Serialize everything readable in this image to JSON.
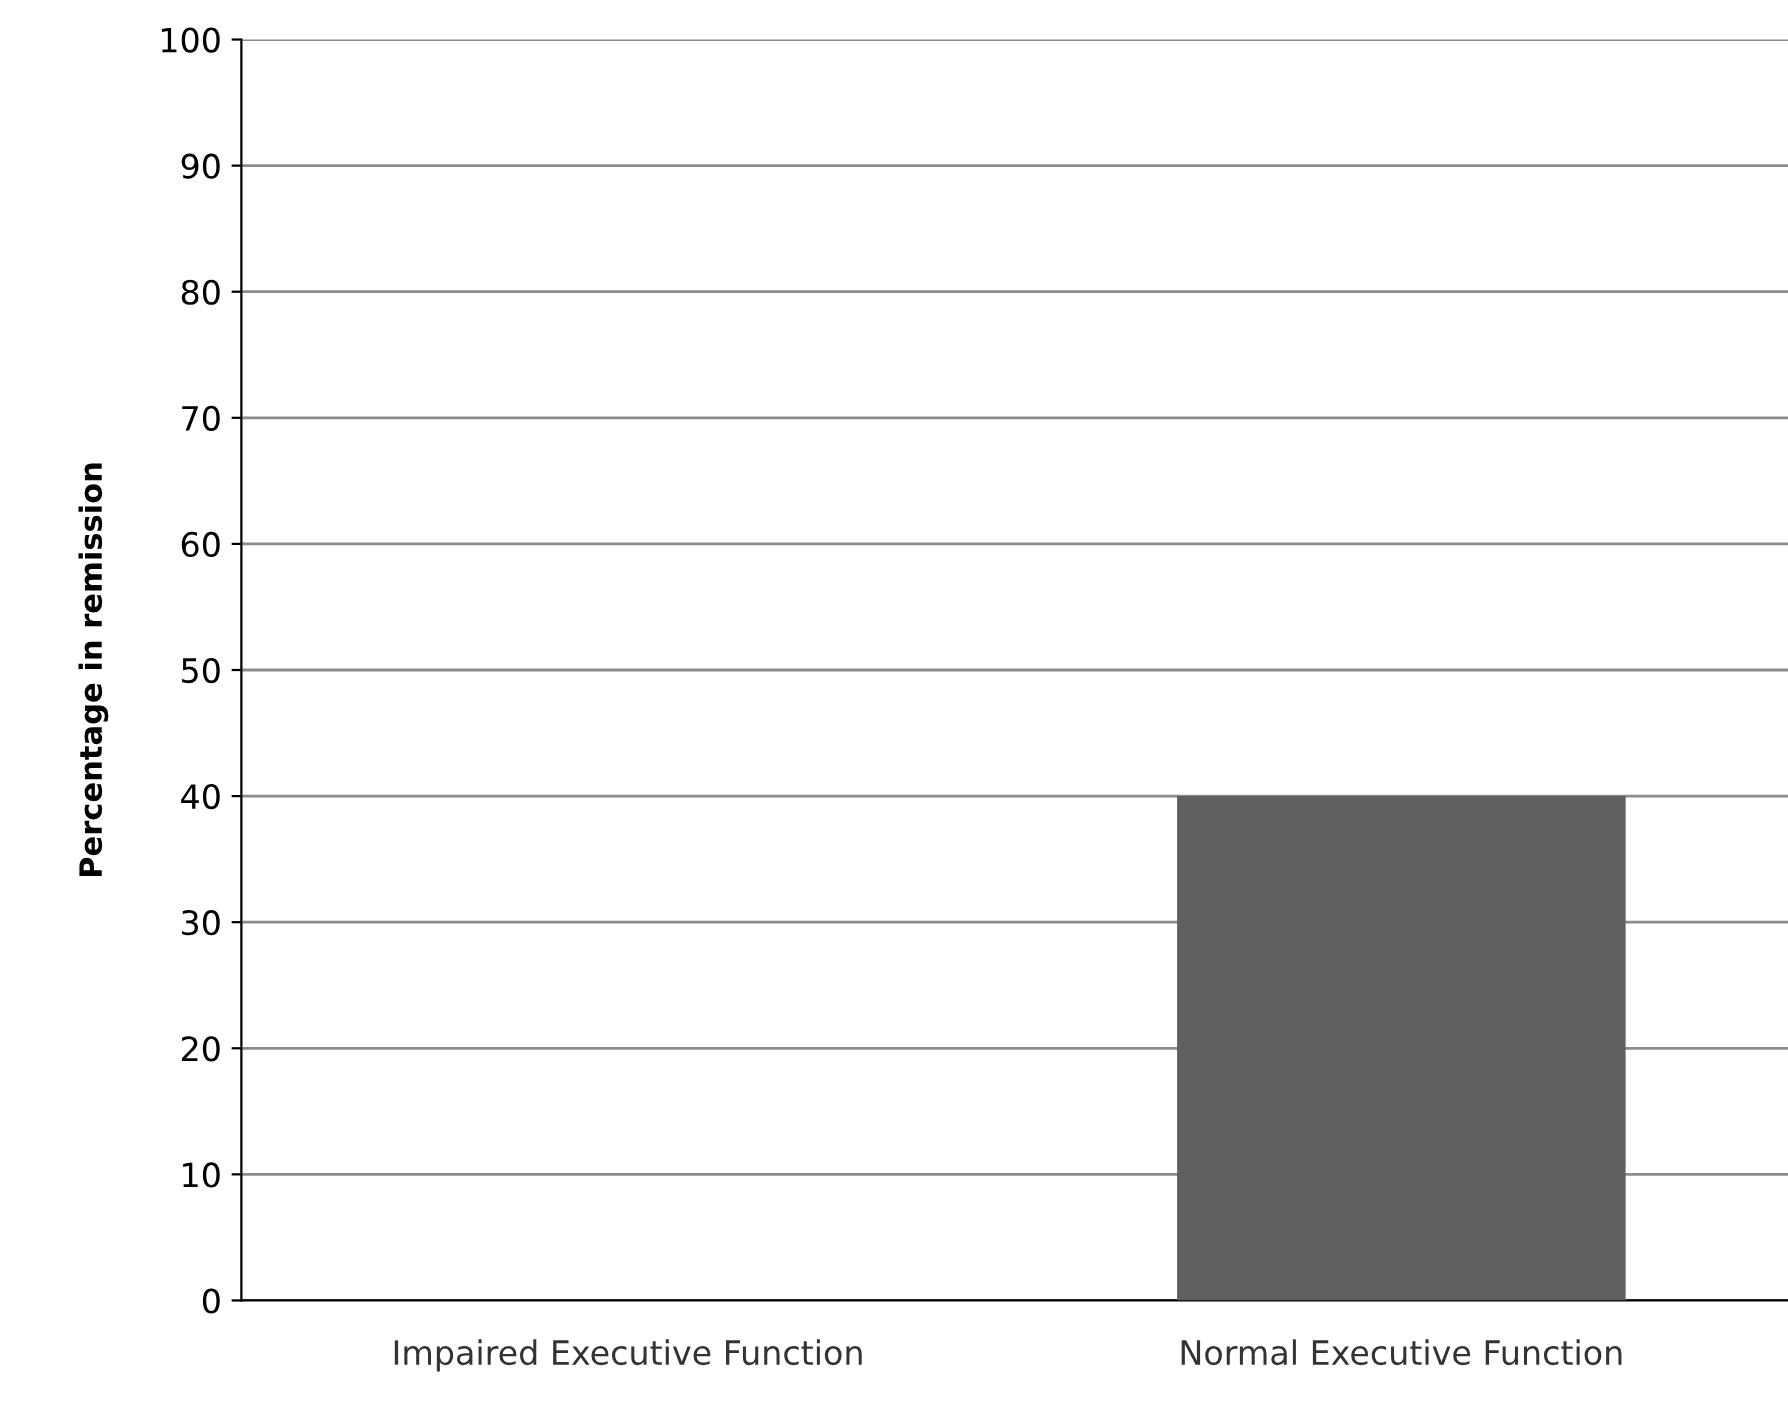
{
  "chart_data": {
    "type": "bar",
    "ylabel": "Percentage in remission",
    "categories": [
      "Impaired Executive Function",
      "Normal Executive Function"
    ],
    "values": [
      0,
      40
    ],
    "color": "#606060",
    "ylim": [
      0,
      100
    ],
    "yticks": [
      0,
      10,
      20,
      30,
      40,
      50,
      60,
      70,
      80,
      90,
      100
    ],
    "grid": "y"
  }
}
